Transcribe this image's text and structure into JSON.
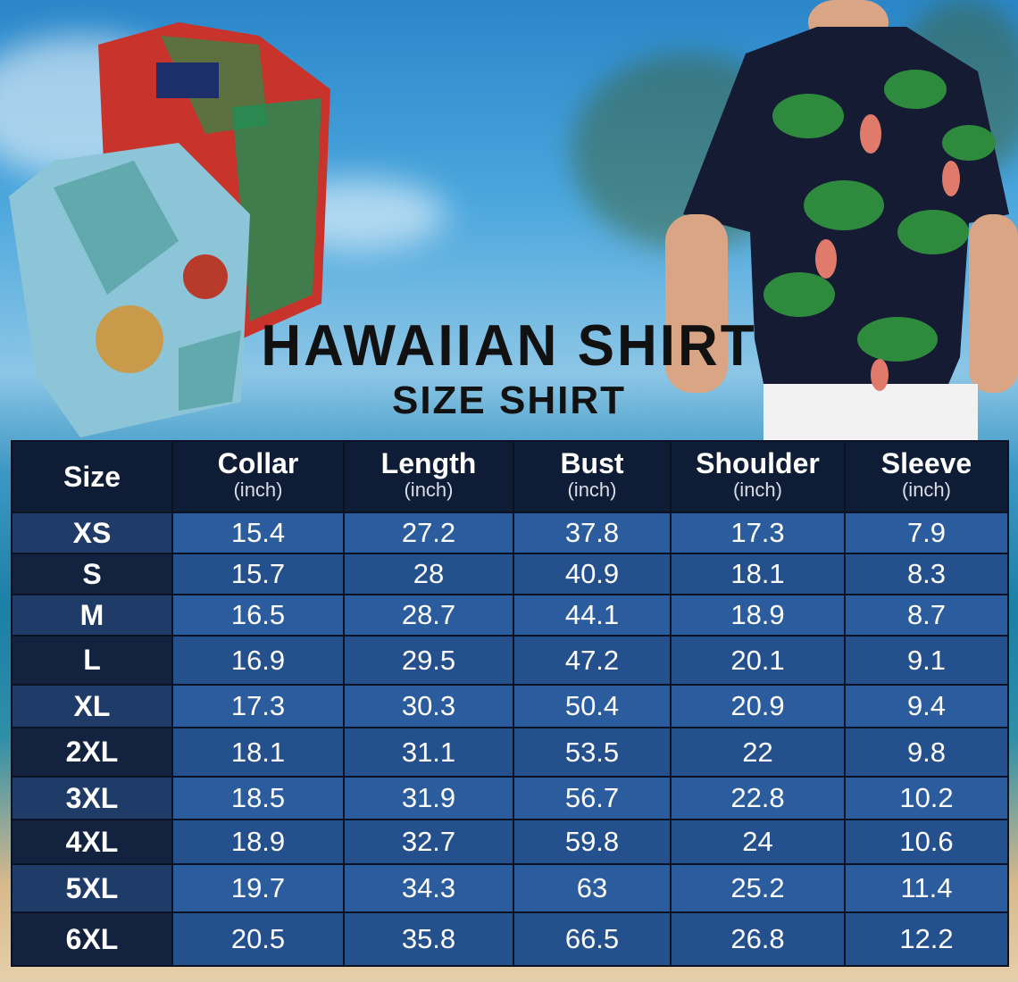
{
  "title": "HAWAIIAN SHIRT",
  "subtitle": "SIZE SHIRT",
  "table": {
    "headers": [
      {
        "label": "Size",
        "unit": ""
      },
      {
        "label": "Collar",
        "unit": "(inch)"
      },
      {
        "label": "Length",
        "unit": "(inch)"
      },
      {
        "label": "Bust",
        "unit": "(inch)"
      },
      {
        "label": "Shoulder",
        "unit": "(inch)"
      },
      {
        "label": "Sleeve",
        "unit": "(inch)"
      }
    ],
    "rows": [
      [
        "XS",
        "15.4",
        "27.2",
        "37.8",
        "17.3",
        "7.9"
      ],
      [
        "S",
        "15.7",
        "28",
        "40.9",
        "18.1",
        "8.3"
      ],
      [
        "M",
        "16.5",
        "28.7",
        "44.1",
        "18.9",
        "8.7"
      ],
      [
        "L",
        "16.9",
        "29.5",
        "47.2",
        "20.1",
        "9.1"
      ],
      [
        "XL",
        "17.3",
        "30.3",
        "50.4",
        "20.9",
        "9.4"
      ],
      [
        "2XL",
        "18.1",
        "31.1",
        "53.5",
        "22",
        "9.8"
      ],
      [
        "3XL",
        "18.5",
        "31.9",
        "56.7",
        "22.8",
        "10.2"
      ],
      [
        "4XL",
        "18.9",
        "32.7",
        "59.8",
        "24",
        "10.6"
      ],
      [
        "5XL",
        "19.7",
        "34.3",
        "63",
        "25.2",
        "11.4"
      ],
      [
        "6XL",
        "20.5",
        "35.8",
        "66.5",
        "26.8",
        "12.2"
      ]
    ]
  },
  "colors": {
    "header": "#0f1c35",
    "cell_light": "#2a5c9e",
    "cell_dark": "#25508e"
  }
}
